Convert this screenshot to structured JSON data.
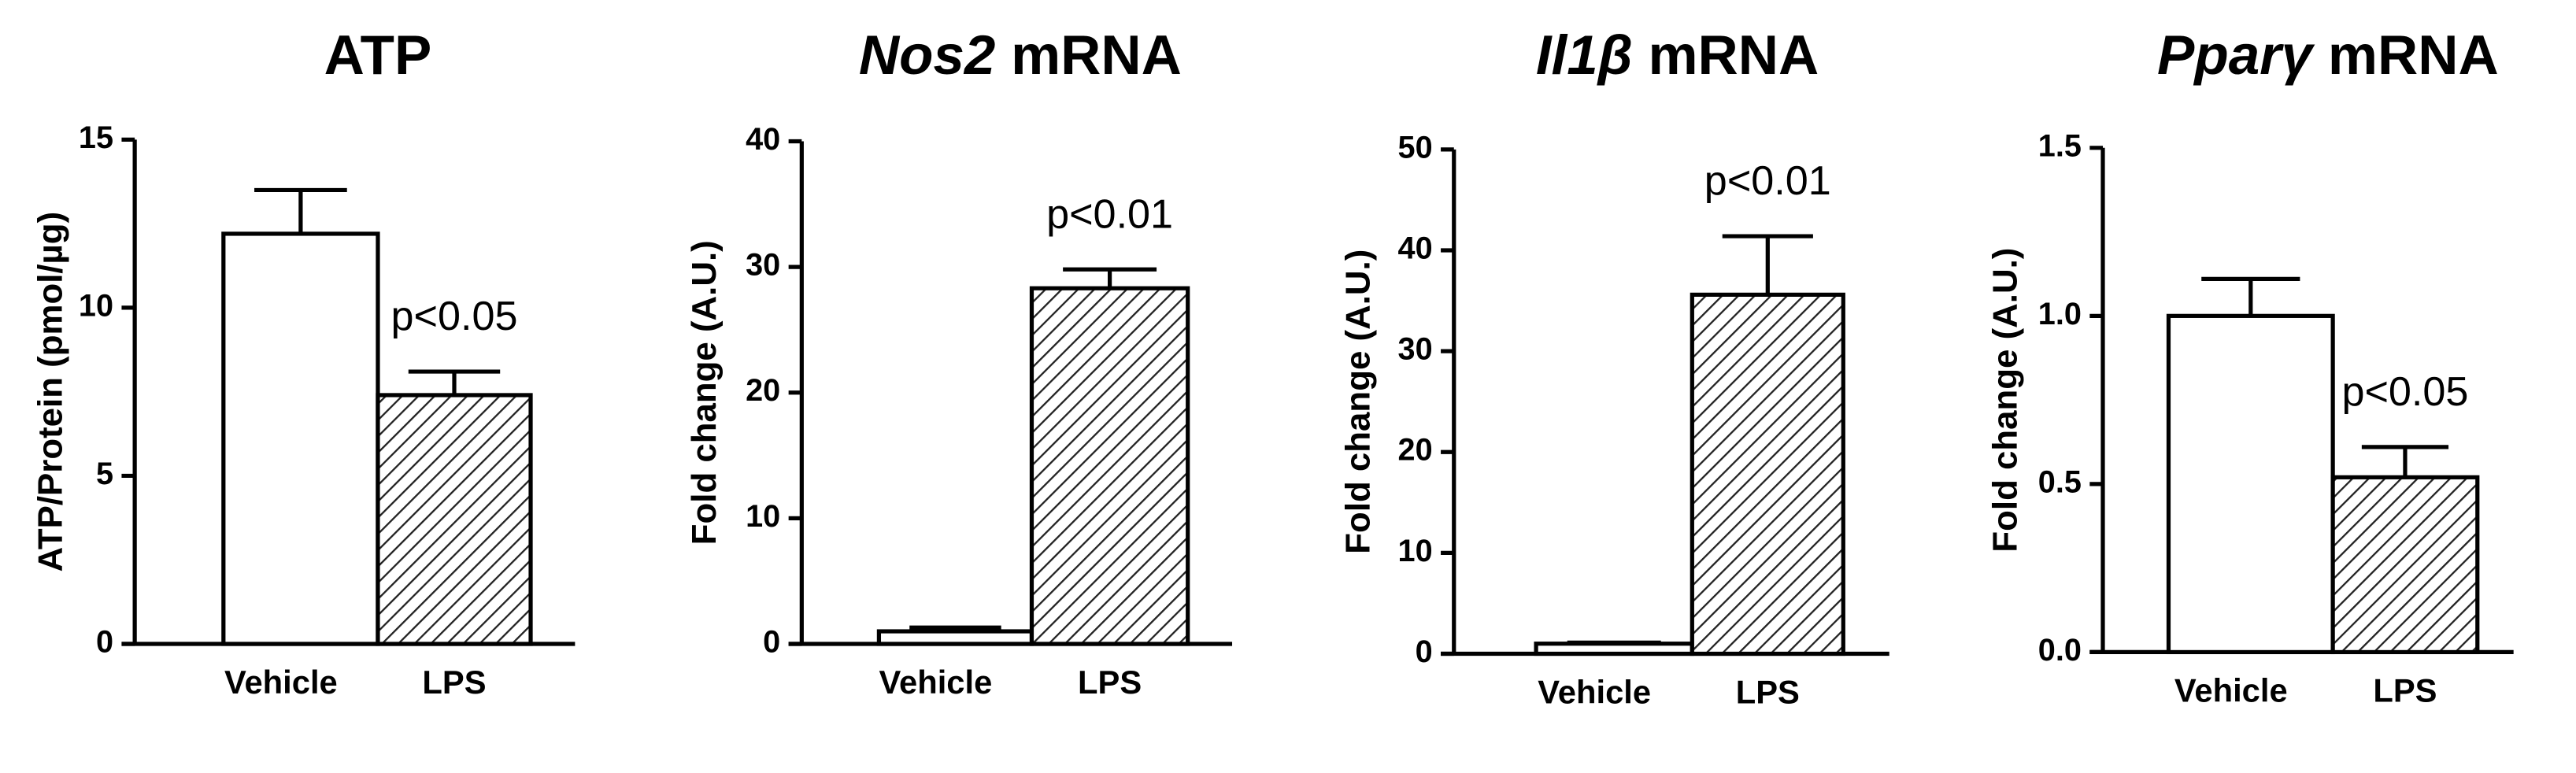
{
  "chart_data": [
    {
      "type": "bar",
      "title": "ATP",
      "ylabel": "ATP/Protein (pmol/µg)",
      "categories": [
        "Vehicle",
        "LPS"
      ],
      "values": [
        12.2,
        7.4
      ],
      "errors": [
        1.3,
        0.7
      ],
      "fills": [
        "white",
        "hatch"
      ],
      "annotation": "p<0.05",
      "ylim": [
        0,
        15
      ],
      "yticks": [
        0,
        5,
        10,
        15
      ]
    },
    {
      "type": "bar",
      "title_italic": "Nos2",
      "title": "mRNA",
      "ylabel": "Fold change (A.U.)",
      "categories": [
        "Vehicle",
        "LPS"
      ],
      "values": [
        1.0,
        28.3
      ],
      "errors": [
        0.3,
        1.5
      ],
      "fills": [
        "white",
        "hatch"
      ],
      "annotation": "p<0.01",
      "ylim": [
        0,
        40
      ],
      "yticks": [
        0,
        10,
        20,
        30,
        40
      ]
    },
    {
      "type": "bar",
      "title_italic": "Il1β",
      "title": "mRNA",
      "ylabel": "Fold change (A.U.)",
      "categories": [
        "Vehicle",
        "LPS"
      ],
      "values": [
        1.0,
        35.6
      ],
      "errors": [
        0.1,
        5.8
      ],
      "fills": [
        "white",
        "hatch"
      ],
      "annotation": "p<0.01",
      "ylim": [
        0,
        50
      ],
      "yticks": [
        0,
        10,
        20,
        30,
        40,
        50
      ]
    },
    {
      "type": "bar",
      "title_italic": "Pparγ",
      "title": "mRNA",
      "ylabel": "Fold change (A.U.)",
      "categories": [
        "Vehicle",
        "LPS"
      ],
      "values": [
        1.0,
        0.52
      ],
      "errors": [
        0.11,
        0.09
      ],
      "fills": [
        "white",
        "hatch"
      ],
      "annotation": "p<0.05",
      "ylim": [
        0,
        1.5
      ],
      "yticks": [
        {
          "value": 0,
          "label": "0.0"
        },
        0.5,
        {
          "value": 1,
          "label": "1.0"
        },
        {
          "value": 1.5,
          "label": "1.5"
        }
      ]
    }
  ]
}
